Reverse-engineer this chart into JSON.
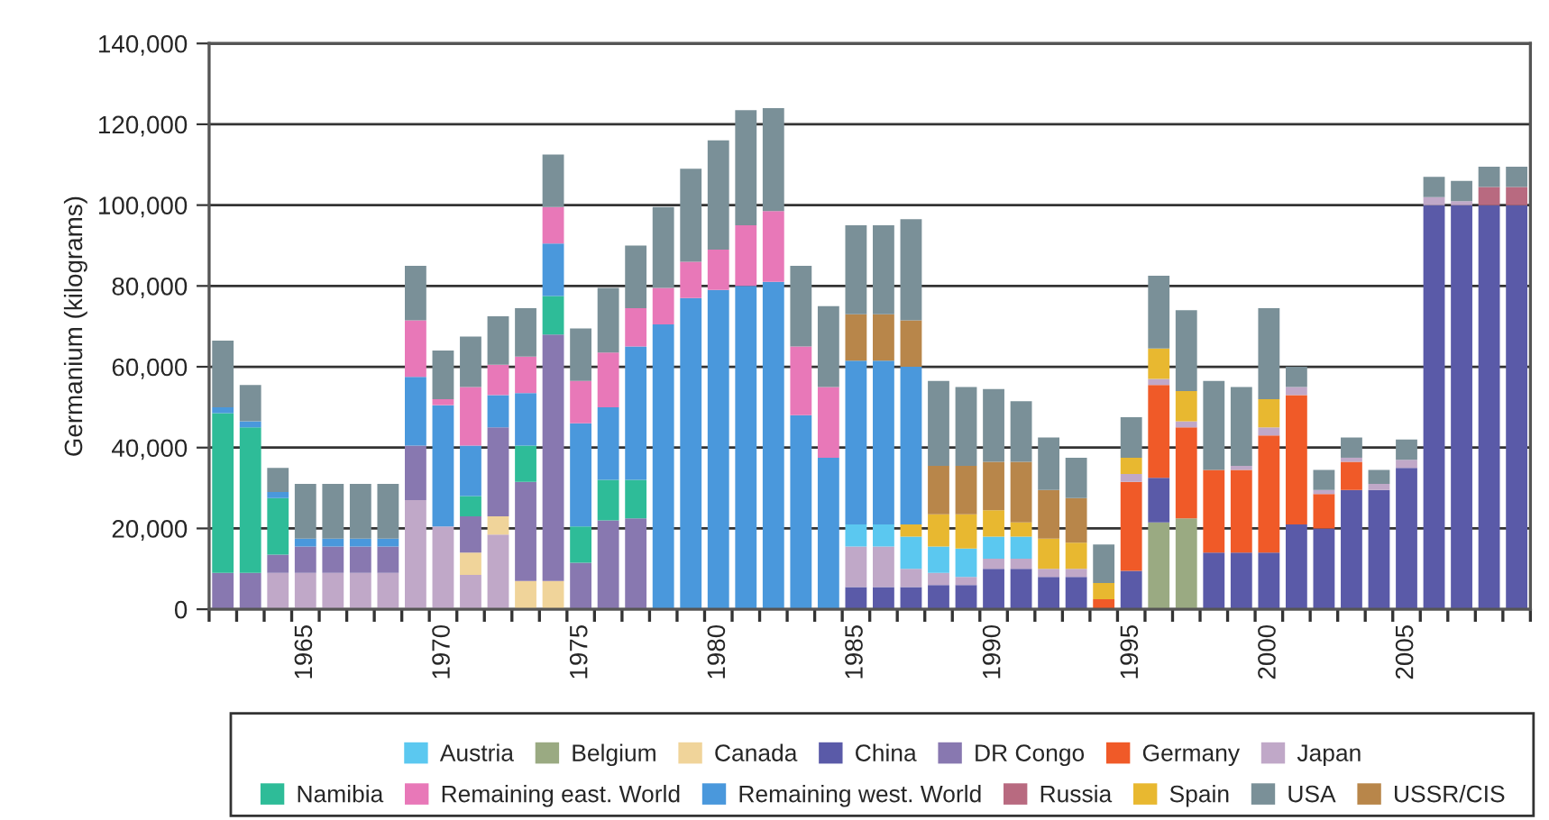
{
  "chart_data": {
    "type": "bar",
    "stacked": true,
    "ylabel": "Germanium (kilograms)",
    "categories": [
      null,
      null,
      null,
      "1965",
      null,
      null,
      null,
      null,
      "1970",
      null,
      null,
      null,
      null,
      "1975",
      null,
      null,
      null,
      null,
      "1980",
      null,
      null,
      null,
      null,
      "1985",
      null,
      null,
      null,
      null,
      "1990",
      null,
      null,
      null,
      null,
      "1995",
      null,
      null,
      null,
      null,
      "2000",
      null,
      null,
      null,
      null,
      "2005",
      null,
      null,
      null,
      null
    ],
    "ylim": [
      0,
      140000
    ],
    "yticks": [
      {
        "value": 0,
        "label": "0"
      },
      {
        "value": 20000,
        "label": "20,000"
      },
      {
        "value": 40000,
        "label": "40,000"
      },
      {
        "value": 60000,
        "label": "60,000"
      },
      {
        "value": 80000,
        "label": "80,000"
      },
      {
        "value": 100000,
        "label": "100,000"
      },
      {
        "value": 120000,
        "label": "120,000"
      },
      {
        "value": 140000,
        "label": "140,000"
      }
    ],
    "grid": "y",
    "legend": "bottom",
    "series": [
      {
        "name": "Belgium",
        "color": "#9aaa82",
        "values": [
          null,
          null,
          null,
          null,
          null,
          null,
          null,
          null,
          null,
          null,
          null,
          null,
          null,
          null,
          null,
          null,
          null,
          null,
          null,
          null,
          null,
          null,
          null,
          null,
          null,
          null,
          null,
          null,
          null,
          null,
          null,
          null,
          null,
          null,
          21500,
          22500,
          null,
          null,
          null,
          null,
          null,
          null,
          null,
          null,
          null,
          null,
          null,
          null
        ]
      },
      {
        "name": "China",
        "color": "#5a5aa8",
        "values": [
          null,
          null,
          null,
          null,
          null,
          null,
          null,
          null,
          null,
          null,
          null,
          null,
          null,
          null,
          null,
          null,
          null,
          null,
          null,
          null,
          null,
          null,
          null,
          5500,
          5500,
          5500,
          6000,
          6000,
          10000,
          10000,
          8000,
          8000,
          null,
          9500,
          11000,
          null,
          14000,
          14000,
          14000,
          21000,
          20000,
          29500,
          29500,
          35000,
          100000,
          100000,
          100000,
          100000
        ]
      },
      {
        "name": "Germany",
        "color": "#f05a28",
        "values": [
          null,
          null,
          null,
          null,
          null,
          null,
          null,
          null,
          null,
          null,
          null,
          null,
          null,
          null,
          null,
          null,
          null,
          null,
          null,
          null,
          null,
          null,
          null,
          null,
          null,
          null,
          null,
          null,
          null,
          null,
          null,
          null,
          2500,
          22000,
          23000,
          22500,
          20500,
          20500,
          29000,
          32000,
          8500,
          7000,
          null,
          null,
          null,
          null,
          null,
          null
        ]
      },
      {
        "name": "Japan",
        "color": "#c0a8c8",
        "values": [
          null,
          null,
          9000,
          9000,
          9000,
          9000,
          9000,
          27000,
          20500,
          8500,
          18500,
          null,
          null,
          null,
          null,
          null,
          null,
          null,
          null,
          null,
          null,
          null,
          null,
          10000,
          10000,
          4500,
          3000,
          2000,
          2500,
          2500,
          2000,
          2000,
          null,
          2000,
          1500,
          1500,
          null,
          1000,
          2000,
          2000,
          1000,
          1000,
          1500,
          2000,
          2000,
          1000,
          null,
          null
        ]
      },
      {
        "name": "Canada",
        "color": "#f0d49a",
        "values": [
          null,
          null,
          null,
          null,
          null,
          null,
          null,
          null,
          null,
          5500,
          4500,
          7000,
          7000,
          null,
          null,
          null,
          null,
          null,
          null,
          null,
          null,
          null,
          null,
          null,
          null,
          null,
          null,
          null,
          null,
          null,
          null,
          null,
          null,
          null,
          null,
          null,
          null,
          null,
          null,
          null,
          null,
          null,
          null,
          null,
          null,
          null,
          null,
          null
        ]
      },
      {
        "name": "DR Congo",
        "color": "#8878b0",
        "values": [
          9000,
          9000,
          4500,
          6500,
          6500,
          6500,
          6500,
          13500,
          null,
          9000,
          22000,
          24500,
          61000,
          11500,
          22000,
          22500,
          null,
          null,
          null,
          null,
          null,
          null,
          null,
          null,
          null,
          null,
          null,
          null,
          null,
          null,
          null,
          null,
          null,
          null,
          null,
          null,
          null,
          null,
          null,
          null,
          null,
          null,
          null,
          null,
          null,
          null,
          null,
          null
        ]
      },
      {
        "name": "Austria",
        "color": "#5bc8f0",
        "values": [
          null,
          null,
          null,
          null,
          null,
          null,
          null,
          null,
          null,
          null,
          null,
          null,
          null,
          null,
          null,
          null,
          null,
          null,
          null,
          null,
          null,
          null,
          null,
          5500,
          5500,
          8000,
          6500,
          7000,
          5500,
          5500,
          null,
          null,
          null,
          null,
          null,
          null,
          null,
          null,
          null,
          null,
          null,
          null,
          null,
          null,
          null,
          null,
          null,
          null
        ]
      },
      {
        "name": "Spain",
        "color": "#e8b830",
        "values": [
          null,
          null,
          null,
          null,
          null,
          null,
          null,
          null,
          null,
          null,
          null,
          null,
          null,
          null,
          null,
          null,
          null,
          null,
          null,
          null,
          null,
          null,
          null,
          null,
          null,
          3000,
          8000,
          8500,
          6500,
          3500,
          7500,
          6500,
          4000,
          4000,
          7500,
          7500,
          null,
          null,
          7000,
          null,
          null,
          null,
          null,
          null,
          null,
          null,
          null,
          null
        ]
      },
      {
        "name": "Namibia",
        "color": "#2ebc98",
        "values": [
          39500,
          36000,
          14000,
          null,
          null,
          null,
          null,
          null,
          null,
          5000,
          null,
          9000,
          9500,
          9000,
          10000,
          9500,
          null,
          null,
          null,
          null,
          null,
          null,
          null,
          null,
          null,
          null,
          null,
          null,
          null,
          null,
          null,
          null,
          null,
          null,
          null,
          null,
          null,
          null,
          null,
          null,
          null,
          null,
          null,
          null,
          null,
          null,
          null,
          null
        ]
      },
      {
        "name": "Remaining west. World",
        "color": "#4a98dc",
        "values": [
          1500,
          1500,
          1500,
          2000,
          2000,
          2000,
          2000,
          17000,
          30000,
          12500,
          8000,
          13000,
          13000,
          25500,
          18000,
          33000,
          70500,
          77000,
          79000,
          80000,
          81000,
          48000,
          37500,
          40500,
          40500,
          39000,
          null,
          null,
          null,
          null,
          null,
          null,
          null,
          null,
          null,
          null,
          null,
          null,
          null,
          null,
          null,
          null,
          null,
          null,
          null,
          null,
          null,
          null
        ]
      },
      {
        "name": "Remaining east. World",
        "color": "#e878b8",
        "values": [
          null,
          null,
          null,
          null,
          null,
          null,
          null,
          14000,
          1500,
          14500,
          7500,
          9000,
          9000,
          10500,
          13500,
          9500,
          9000,
          9000,
          10000,
          15000,
          17500,
          17000,
          17500,
          null,
          null,
          null,
          null,
          null,
          null,
          null,
          null,
          null,
          null,
          null,
          null,
          null,
          null,
          null,
          null,
          null,
          null,
          null,
          null,
          null,
          null,
          null,
          null,
          null
        ]
      },
      {
        "name": "USSR/CIS",
        "color": "#b8864a",
        "values": [
          null,
          null,
          null,
          null,
          null,
          null,
          null,
          null,
          null,
          null,
          null,
          null,
          null,
          null,
          null,
          null,
          null,
          null,
          null,
          null,
          null,
          null,
          null,
          11500,
          11500,
          11500,
          12000,
          12000,
          12000,
          15000,
          12000,
          11000,
          null,
          null,
          null,
          null,
          null,
          null,
          null,
          null,
          null,
          null,
          null,
          null,
          null,
          null,
          null,
          null
        ]
      },
      {
        "name": "Russia",
        "color": "#b86a80",
        "values": [
          null,
          null,
          null,
          null,
          null,
          null,
          null,
          null,
          null,
          null,
          null,
          null,
          null,
          null,
          null,
          null,
          null,
          null,
          null,
          null,
          null,
          null,
          null,
          null,
          null,
          null,
          null,
          null,
          null,
          null,
          null,
          null,
          null,
          null,
          null,
          null,
          null,
          null,
          null,
          null,
          null,
          null,
          null,
          null,
          null,
          null,
          4500,
          4500
        ]
      },
      {
        "name": "USA",
        "color": "#7a9098",
        "values": [
          16500,
          9000,
          6000,
          13500,
          13500,
          13500,
          13500,
          13500,
          12000,
          12500,
          12000,
          12000,
          13000,
          13000,
          16000,
          15500,
          20000,
          23000,
          27000,
          28500,
          25500,
          20000,
          20000,
          22000,
          22000,
          25000,
          21000,
          19500,
          18000,
          15000,
          13000,
          10000,
          9500,
          10000,
          18000,
          20000,
          22000,
          19500,
          22500,
          5000,
          5000,
          5000,
          3500,
          5000,
          5000,
          5000,
          5000,
          5000
        ]
      }
    ]
  }
}
